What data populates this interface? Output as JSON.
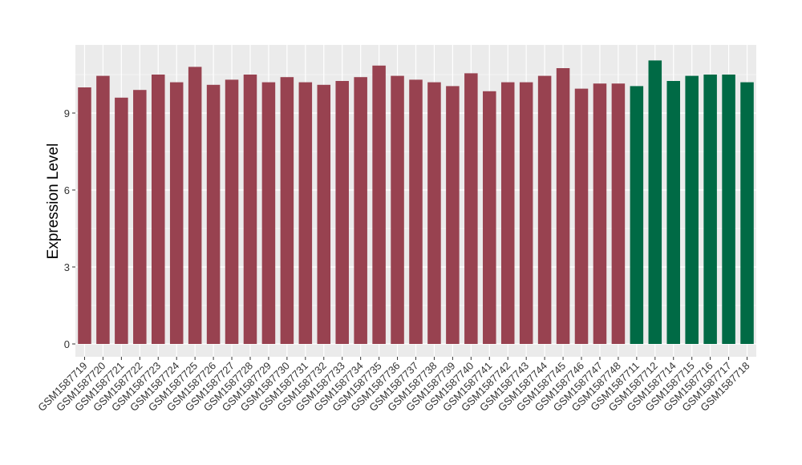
{
  "chart_data": {
    "type": "bar",
    "ylabel": "Expression Level",
    "xlabel": "",
    "ylim": [
      0,
      11.6
    ],
    "yticks": [
      0,
      3,
      6,
      9
    ],
    "grid": true,
    "background": "#EBEBEB",
    "gridline_color": "#FFFFFF",
    "series": [
      {
        "color": "#984250",
        "categories": [
          "GSM1587719",
          "GSM1587720",
          "GSM1587721",
          "GSM1587722",
          "GSM1587723",
          "GSM1587724",
          "GSM1587725",
          "GSM1587726",
          "GSM1587727",
          "GSM1587728",
          "GSM1587729",
          "GSM1587730",
          "GSM1587731",
          "GSM1587732",
          "GSM1587733",
          "GSM1587734",
          "GSM1587735",
          "GSM1587736",
          "GSM1587737",
          "GSM1587738",
          "GSM1587739",
          "GSM1587740",
          "GSM1587741",
          "GSM1587742",
          "GSM1587743",
          "GSM1587744",
          "GSM1587745",
          "GSM1587746",
          "GSM1587747",
          "GSM1587748"
        ],
        "values": [
          10.0,
          10.45,
          9.6,
          9.9,
          10.5,
          10.2,
          10.8,
          10.1,
          10.3,
          10.5,
          10.2,
          10.4,
          10.2,
          10.1,
          10.25,
          10.4,
          10.85,
          10.45,
          10.3,
          10.2,
          10.05,
          10.55,
          9.85,
          10.2,
          10.2,
          10.45,
          10.75,
          9.95,
          10.15,
          10.15
        ]
      },
      {
        "color": "#006A45",
        "categories": [
          "GSM1587711",
          "GSM1587712",
          "GSM1587714",
          "GSM1587715",
          "GSM1587716",
          "GSM1587717",
          "GSM1587718"
        ],
        "values": [
          10.05,
          11.05,
          10.25,
          10.45,
          10.5,
          10.5,
          10.2
        ]
      }
    ]
  }
}
